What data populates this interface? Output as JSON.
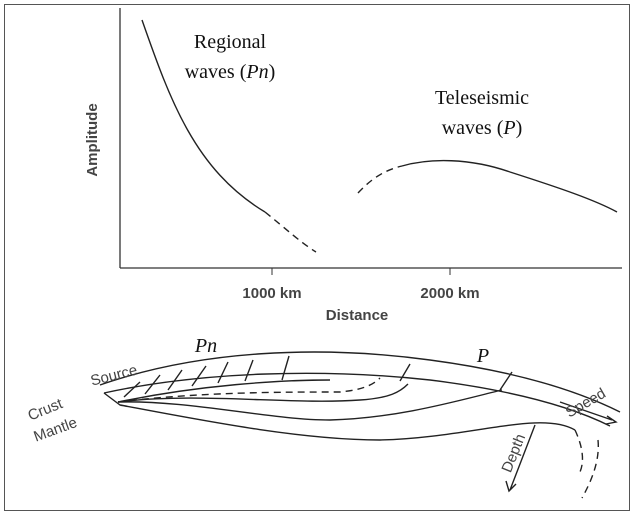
{
  "plot": {
    "y_axis_label": "Amplitude",
    "x_axis_label": "Distance",
    "x_tick_labels": [
      "1000 km",
      "2000 km"
    ],
    "regional_label": {
      "line1": "Regional",
      "line2": [
        "waves (",
        "Pn",
        ")"
      ]
    },
    "teleseismic_label": {
      "line1": "Teleseismic",
      "line2": [
        "waves (",
        "P",
        ")"
      ]
    }
  },
  "section": {
    "labels": {
      "pn": "Pn",
      "p": "P",
      "source": "Source",
      "crust": "Crust",
      "mantle": "Mantle",
      "speed": "Speed",
      "depth": "Depth"
    }
  }
}
